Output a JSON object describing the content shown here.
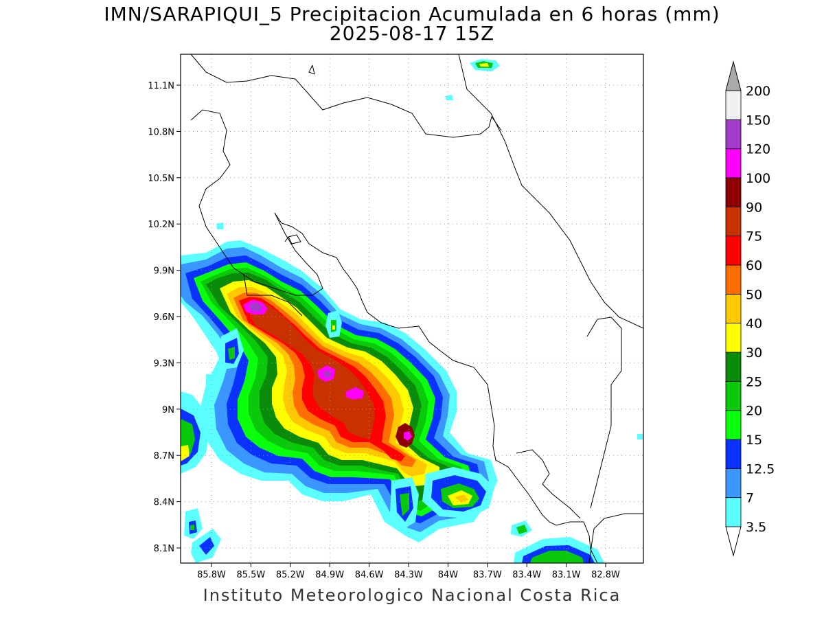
{
  "title": {
    "line1": "IMN/SARAPIQUI_5 Precipitacion Acumulada en 6 horas (mm)",
    "line2": "2025-08-17 15Z"
  },
  "footer": "Instituto Meteorologico Nacional Costa Rica",
  "axes": {
    "lon_ticks": [
      "85.8W",
      "85.5W",
      "85.2W",
      "84.9W",
      "84.6W",
      "84.3W",
      "84W",
      "83.7W",
      "83.4W",
      "83.1W",
      "82.8W"
    ],
    "lat_ticks": [
      "11.1N",
      "10.8N",
      "10.5N",
      "10.2N",
      "9.9N",
      "9.6N",
      "9.3N",
      "9N",
      "8.7N",
      "8.4N",
      "8.1N"
    ],
    "grid": "dotted"
  },
  "colorbar": {
    "labels": [
      "3.5",
      "7",
      "12.5",
      "15",
      "20",
      "25",
      "30",
      "40",
      "50",
      "60",
      "75",
      "90",
      "100",
      "120",
      "150",
      "200"
    ],
    "colors": [
      "#5cffff",
      "#3c96ff",
      "#0a32ff",
      "#0aff0a",
      "#0ac80a",
      "#0a8c0a",
      "#ffff00",
      "#ffc800",
      "#ff6e00",
      "#ff0000",
      "#c83200",
      "#8c0000",
      "#ff00ff",
      "#a03cc8",
      "#f0f0f0",
      "#aaaaaa"
    ],
    "colors_note_ends": "top triangle gray, bottom triangle white"
  }
}
